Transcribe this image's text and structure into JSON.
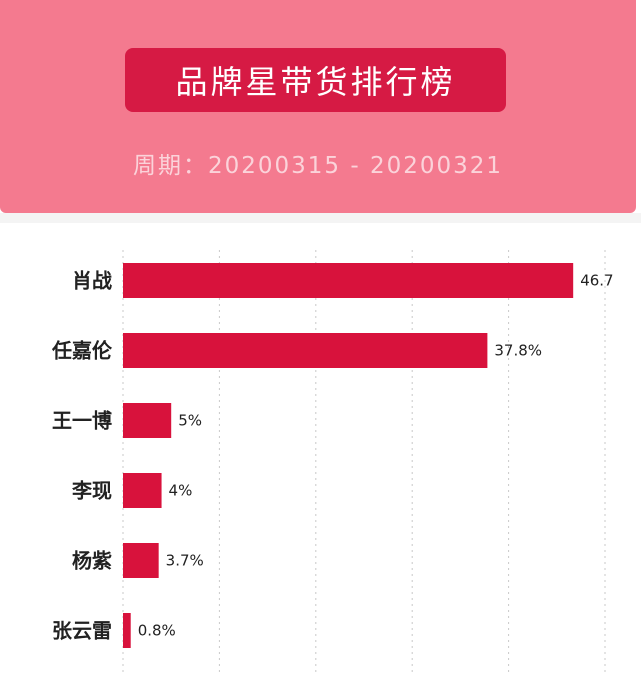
{
  "header": {
    "title": "品牌星带货排行榜",
    "period": "周期：20200315 - 20200321"
  },
  "colors": {
    "header_bg": "#f47a8f",
    "title_bg": "#d61a44",
    "bar": "#d8123c"
  },
  "chart_data": {
    "type": "bar",
    "orientation": "horizontal",
    "title": "",
    "xlabel": "",
    "ylabel": "",
    "grid": true,
    "xlim": [
      0,
      50
    ],
    "categories": [
      "肖战",
      "任嘉伦",
      "王一博",
      "李现",
      "杨紫",
      "张云雷"
    ],
    "values": [
      46.7,
      37.8,
      5,
      4,
      3.7,
      0.8
    ],
    "value_labels": [
      "46.7",
      "37.8%",
      "5%",
      "4%",
      "3.7%",
      "0.8%"
    ]
  }
}
